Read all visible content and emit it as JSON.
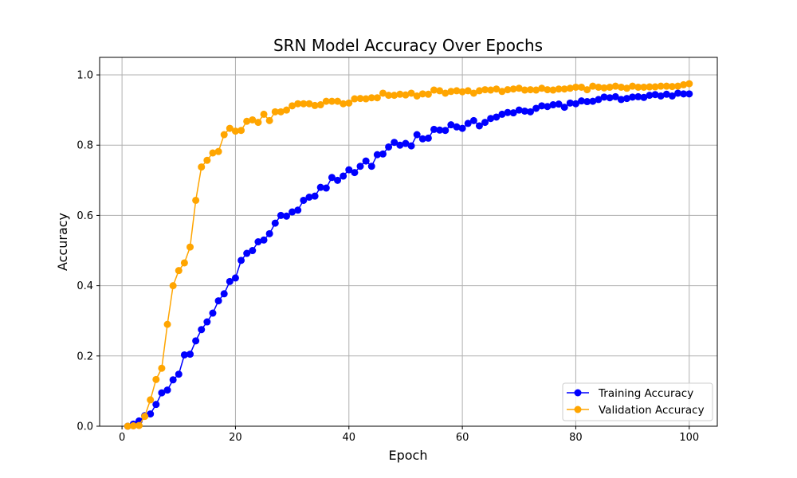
{
  "chart_data": {
    "type": "line",
    "title": "SRN Model Accuracy Over Epochs",
    "xlabel": "Epoch",
    "ylabel": "Accuracy",
    "xlim": [
      -3.95,
      104.95
    ],
    "ylim": [
      0.0,
      1.05
    ],
    "xticks": [
      0,
      20,
      40,
      60,
      80,
      100
    ],
    "yticks": [
      0.0,
      0.2,
      0.4,
      0.6,
      0.8,
      1.0
    ],
    "grid": true,
    "legend_position": "lower right",
    "x": [
      1,
      2,
      3,
      4,
      5,
      6,
      7,
      8,
      9,
      10,
      11,
      12,
      13,
      14,
      15,
      16,
      17,
      18,
      19,
      20,
      21,
      22,
      23,
      24,
      25,
      26,
      27,
      28,
      29,
      30,
      31,
      32,
      33,
      34,
      35,
      36,
      37,
      38,
      39,
      40,
      41,
      42,
      43,
      44,
      45,
      46,
      47,
      48,
      49,
      50,
      51,
      52,
      53,
      54,
      55,
      56,
      57,
      58,
      59,
      60,
      61,
      62,
      63,
      64,
      65,
      66,
      67,
      68,
      69,
      70,
      71,
      72,
      73,
      74,
      75,
      76,
      77,
      78,
      79,
      80,
      81,
      82,
      83,
      84,
      85,
      86,
      87,
      88,
      89,
      90,
      91,
      92,
      93,
      94,
      95,
      96,
      97,
      98,
      99,
      100
    ],
    "series": [
      {
        "name": "Training Accuracy",
        "color": "#0000ff",
        "values": [
          0.0,
          0.006,
          0.015,
          0.03,
          0.035,
          0.062,
          0.095,
          0.103,
          0.132,
          0.148,
          0.203,
          0.205,
          0.243,
          0.275,
          0.297,
          0.322,
          0.357,
          0.377,
          0.412,
          0.422,
          0.472,
          0.492,
          0.5,
          0.525,
          0.53,
          0.548,
          0.578,
          0.6,
          0.598,
          0.61,
          0.615,
          0.643,
          0.652,
          0.655,
          0.68,
          0.678,
          0.708,
          0.7,
          0.712,
          0.73,
          0.722,
          0.74,
          0.755,
          0.74,
          0.773,
          0.775,
          0.795,
          0.808,
          0.8,
          0.805,
          0.798,
          0.83,
          0.818,
          0.82,
          0.845,
          0.843,
          0.842,
          0.858,
          0.852,
          0.848,
          0.862,
          0.87,
          0.855,
          0.865,
          0.876,
          0.88,
          0.888,
          0.893,
          0.892,
          0.9,
          0.897,
          0.895,
          0.905,
          0.912,
          0.91,
          0.915,
          0.917,
          0.908,
          0.92,
          0.918,
          0.926,
          0.924,
          0.925,
          0.93,
          0.937,
          0.935,
          0.938,
          0.93,
          0.933,
          0.937,
          0.938,
          0.936,
          0.942,
          0.944,
          0.94,
          0.945,
          0.94,
          0.948,
          0.946,
          0.946
        ]
      },
      {
        "name": "Validation Accuracy",
        "color": "#ffa500",
        "values": [
          0.0,
          0.001,
          0.002,
          0.028,
          0.075,
          0.133,
          0.165,
          0.29,
          0.4,
          0.443,
          0.465,
          0.51,
          0.643,
          0.738,
          0.757,
          0.778,
          0.782,
          0.83,
          0.848,
          0.84,
          0.842,
          0.868,
          0.872,
          0.865,
          0.888,
          0.87,
          0.895,
          0.895,
          0.9,
          0.912,
          0.918,
          0.918,
          0.918,
          0.913,
          0.915,
          0.925,
          0.925,
          0.925,
          0.918,
          0.92,
          0.932,
          0.933,
          0.932,
          0.935,
          0.935,
          0.948,
          0.942,
          0.942,
          0.945,
          0.943,
          0.948,
          0.94,
          0.946,
          0.945,
          0.957,
          0.955,
          0.948,
          0.953,
          0.955,
          0.952,
          0.955,
          0.948,
          0.955,
          0.958,
          0.957,
          0.96,
          0.953,
          0.958,
          0.96,
          0.962,
          0.957,
          0.958,
          0.957,
          0.962,
          0.958,
          0.957,
          0.96,
          0.96,
          0.962,
          0.965,
          0.965,
          0.958,
          0.968,
          0.965,
          0.963,
          0.965,
          0.968,
          0.965,
          0.962,
          0.968,
          0.965,
          0.965,
          0.966,
          0.966,
          0.968,
          0.968,
          0.967,
          0.968,
          0.972,
          0.975
        ]
      }
    ]
  }
}
